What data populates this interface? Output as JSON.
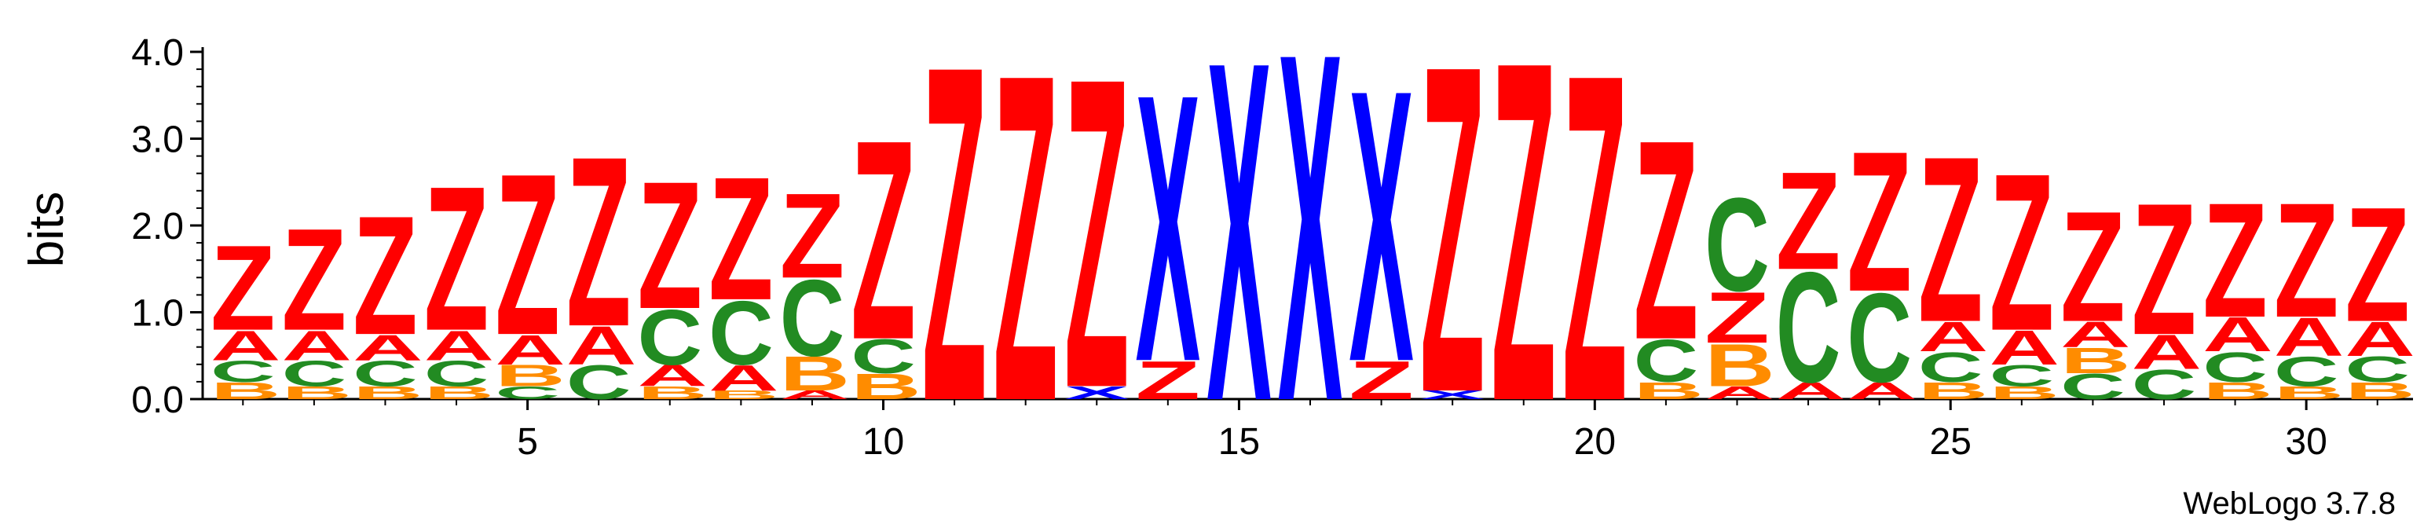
{
  "chart_data": {
    "type": "sequence-logo",
    "ylabel": "bits",
    "ylim": [
      0,
      4.0
    ],
    "y_ticks": [
      "0.0",
      "1.0",
      "2.0",
      "3.0",
      "4.0"
    ],
    "x_ticks": [
      5,
      10,
      15,
      20,
      25,
      30
    ],
    "positions": 31,
    "credit": "WebLogo 3.7.8",
    "colors": {
      "A": "#ff0000",
      "Z": "#ff0000",
      "B": "#ff8c00",
      "C": "#228b22",
      "X": "#0000ff"
    },
    "stacks": [
      {
        "position": 1,
        "letters": [
          {
            "letter": "B",
            "bits": 0.2
          },
          {
            "letter": "C",
            "bits": 0.25
          },
          {
            "letter": "A",
            "bits": 0.35
          },
          {
            "letter": "Z",
            "bits": 1.0
          }
        ]
      },
      {
        "position": 2,
        "letters": [
          {
            "letter": "B",
            "bits": 0.15
          },
          {
            "letter": "C",
            "bits": 0.3
          },
          {
            "letter": "A",
            "bits": 0.35
          },
          {
            "letter": "Z",
            "bits": 1.2
          }
        ]
      },
      {
        "position": 3,
        "letters": [
          {
            "letter": "B",
            "bits": 0.15
          },
          {
            "letter": "C",
            "bits": 0.3
          },
          {
            "letter": "A",
            "bits": 0.3
          },
          {
            "letter": "Z",
            "bits": 1.4
          }
        ]
      },
      {
        "position": 4,
        "letters": [
          {
            "letter": "B",
            "bits": 0.15
          },
          {
            "letter": "C",
            "bits": 0.3
          },
          {
            "letter": "A",
            "bits": 0.35
          },
          {
            "letter": "Z",
            "bits": 1.7
          }
        ]
      },
      {
        "position": 5,
        "letters": [
          {
            "letter": "C",
            "bits": 0.15
          },
          {
            "letter": "B",
            "bits": 0.25
          },
          {
            "letter": "A",
            "bits": 0.35
          },
          {
            "letter": "Z",
            "bits": 1.9
          }
        ]
      },
      {
        "position": 6,
        "letters": [
          {
            "letter": "C",
            "bits": 0.4
          },
          {
            "letter": "A",
            "bits": 0.45
          },
          {
            "letter": "Z",
            "bits": 2.0
          }
        ]
      },
      {
        "position": 7,
        "letters": [
          {
            "letter": "B",
            "bits": 0.15
          },
          {
            "letter": "A",
            "bits": 0.25
          },
          {
            "letter": "C",
            "bits": 0.65
          },
          {
            "letter": "Z",
            "bits": 1.5
          }
        ]
      },
      {
        "position": 8,
        "letters": [
          {
            "letter": "B",
            "bits": 0.1
          },
          {
            "letter": "A",
            "bits": 0.3
          },
          {
            "letter": "C",
            "bits": 0.75
          },
          {
            "letter": "Z",
            "bits": 1.45
          }
        ]
      },
      {
        "position": 9,
        "letters": [
          {
            "letter": "A",
            "bits": 0.1
          },
          {
            "letter": "B",
            "bits": 0.4
          },
          {
            "letter": "C",
            "bits": 0.9
          },
          {
            "letter": "Z",
            "bits": 1.0
          }
        ]
      },
      {
        "position": 10,
        "letters": [
          {
            "letter": "B",
            "bits": 0.3
          },
          {
            "letter": "C",
            "bits": 0.4
          },
          {
            "letter": "Z",
            "bits": 2.35
          }
        ]
      },
      {
        "position": 11,
        "letters": [
          {
            "letter": "Z",
            "bits": 3.95
          }
        ]
      },
      {
        "position": 12,
        "letters": [
          {
            "letter": "Z",
            "bits": 3.85
          }
        ]
      },
      {
        "position": 13,
        "letters": [
          {
            "letter": "X",
            "bits": 0.15
          },
          {
            "letter": "Z",
            "bits": 3.65
          }
        ]
      },
      {
        "position": 14,
        "letters": [
          {
            "letter": "Z",
            "bits": 0.45
          },
          {
            "letter": "X",
            "bits": 3.15
          }
        ]
      },
      {
        "position": 15,
        "letters": [
          {
            "letter": "X",
            "bits": 4.0
          }
        ]
      },
      {
        "position": 16,
        "letters": [
          {
            "letter": "X",
            "bits": 4.1
          }
        ]
      },
      {
        "position": 17,
        "letters": [
          {
            "letter": "Z",
            "bits": 0.45
          },
          {
            "letter": "X",
            "bits": 3.2
          }
        ]
      },
      {
        "position": 18,
        "letters": [
          {
            "letter": "X",
            "bits": 0.1
          },
          {
            "letter": "Z",
            "bits": 3.85
          }
        ]
      },
      {
        "position": 19,
        "letters": [
          {
            "letter": "Z",
            "bits": 4.0
          }
        ]
      },
      {
        "position": 20,
        "letters": [
          {
            "letter": "Z",
            "bits": 3.85
          }
        ]
      },
      {
        "position": 21,
        "letters": [
          {
            "letter": "B",
            "bits": 0.2
          },
          {
            "letter": "C",
            "bits": 0.5
          },
          {
            "letter": "Z",
            "bits": 2.35
          }
        ]
      },
      {
        "position": 22,
        "letters": [
          {
            "letter": "A",
            "bits": 0.15
          },
          {
            "letter": "B",
            "bits": 0.5
          },
          {
            "letter": "Z",
            "bits": 0.6
          },
          {
            "letter": "C",
            "bits": 1.1
          }
        ]
      },
      {
        "position": 23,
        "letters": [
          {
            "letter": "A",
            "bits": 0.2
          },
          {
            "letter": "C",
            "bits": 1.3
          },
          {
            "letter": "Z",
            "bits": 1.15
          }
        ]
      },
      {
        "position": 24,
        "letters": [
          {
            "letter": "A",
            "bits": 0.2
          },
          {
            "letter": "C",
            "bits": 1.05
          },
          {
            "letter": "Z",
            "bits": 1.65
          }
        ]
      },
      {
        "position": 25,
        "letters": [
          {
            "letter": "B",
            "bits": 0.2
          },
          {
            "letter": "C",
            "bits": 0.35
          },
          {
            "letter": "A",
            "bits": 0.35
          },
          {
            "letter": "Z",
            "bits": 1.95
          }
        ]
      },
      {
        "position": 26,
        "letters": [
          {
            "letter": "B",
            "bits": 0.15
          },
          {
            "letter": "C",
            "bits": 0.25
          },
          {
            "letter": "A",
            "bits": 0.4
          },
          {
            "letter": "Z",
            "bits": 1.85
          }
        ]
      },
      {
        "position": 27,
        "letters": [
          {
            "letter": "C",
            "bits": 0.3
          },
          {
            "letter": "B",
            "bits": 0.3
          },
          {
            "letter": "A",
            "bits": 0.3
          },
          {
            "letter": "Z",
            "bits": 1.3
          }
        ]
      },
      {
        "position": 28,
        "letters": [
          {
            "letter": "C",
            "bits": 0.35
          },
          {
            "letter": "A",
            "bits": 0.4
          },
          {
            "letter": "Z",
            "bits": 1.55
          }
        ]
      },
      {
        "position": 29,
        "letters": [
          {
            "letter": "B",
            "bits": 0.2
          },
          {
            "letter": "C",
            "bits": 0.35
          },
          {
            "letter": "A",
            "bits": 0.4
          },
          {
            "letter": "Z",
            "bits": 1.35
          }
        ]
      },
      {
        "position": 30,
        "letters": [
          {
            "letter": "B",
            "bits": 0.15
          },
          {
            "letter": "C",
            "bits": 0.35
          },
          {
            "letter": "A",
            "bits": 0.45
          },
          {
            "letter": "Z",
            "bits": 1.35
          }
        ]
      },
      {
        "position": 31,
        "letters": [
          {
            "letter": "B",
            "bits": 0.2
          },
          {
            "letter": "C",
            "bits": 0.3
          },
          {
            "letter": "A",
            "bits": 0.4
          },
          {
            "letter": "Z",
            "bits": 1.35
          }
        ]
      }
    ]
  }
}
